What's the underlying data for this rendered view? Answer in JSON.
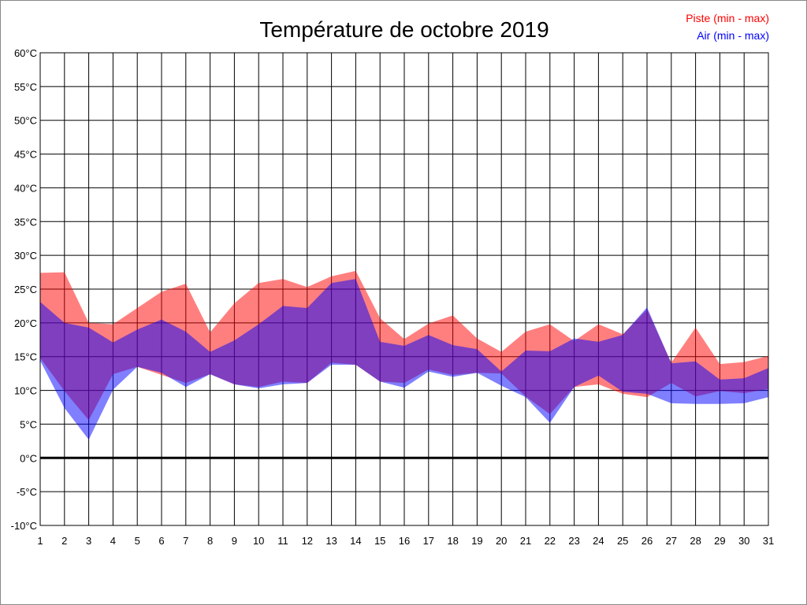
{
  "chart_data": {
    "type": "area",
    "title": "Température de octobre 2019",
    "xlabel": "",
    "ylabel": "",
    "x": [
      1,
      2,
      3,
      4,
      5,
      6,
      7,
      8,
      9,
      10,
      11,
      12,
      13,
      14,
      15,
      16,
      17,
      18,
      19,
      20,
      21,
      22,
      23,
      24,
      25,
      26,
      27,
      28,
      29,
      30,
      31
    ],
    "x_tick_labels": [
      "1",
      "2",
      "3",
      "4",
      "5",
      "6",
      "7",
      "8",
      "9",
      "10",
      "11",
      "12",
      "13",
      "14",
      "15",
      "16",
      "17",
      "18",
      "19",
      "20",
      "21",
      "22",
      "23",
      "24",
      "25",
      "26",
      "27",
      "28",
      "29",
      "30",
      "31"
    ],
    "ylim": [
      -10,
      60
    ],
    "y_ticks": [
      -10,
      -5,
      0,
      5,
      10,
      15,
      20,
      25,
      30,
      35,
      40,
      45,
      50,
      55,
      60
    ],
    "y_tick_labels": [
      "-10°C",
      "-5°C",
      "0°C",
      "5°C",
      "10°C",
      "15°C",
      "20°C",
      "25°C",
      "30°C",
      "35°C",
      "40°C",
      "45°C",
      "50°C",
      "55°C",
      "60°C"
    ],
    "grid": true,
    "legend_position": "top-right",
    "series": [
      {
        "name": "Piste (min - max)",
        "color": "#ff0000",
        "min": [
          14.8,
          9.9,
          5.6,
          12.4,
          13.5,
          12.3,
          11.1,
          12.4,
          10.9,
          10.5,
          11.3,
          11.1,
          14.1,
          13.8,
          11.3,
          11.1,
          13.1,
          12.3,
          12.6,
          12.5,
          9.1,
          6.5,
          10.5,
          10.9,
          9.5,
          9.0,
          11.1,
          9.1,
          9.9,
          9.6,
          10.2
        ],
        "max": [
          27.4,
          27.5,
          20.0,
          19.8,
          22.2,
          24.6,
          25.8,
          18.6,
          22.9,
          25.9,
          26.5,
          25.3,
          26.9,
          27.7,
          20.7,
          17.6,
          19.9,
          21.1,
          17.7,
          15.7,
          18.7,
          19.8,
          17.3,
          19.8,
          18.3,
          22.0,
          14.1,
          19.3,
          13.9,
          14.2,
          15.1
        ]
      },
      {
        "name": "Air (min - max)",
        "color": "#0000ff",
        "min": [
          14.4,
          7.4,
          2.7,
          10.1,
          13.5,
          12.6,
          10.5,
          12.4,
          10.9,
          10.3,
          10.9,
          11.1,
          13.8,
          13.8,
          11.3,
          10.4,
          12.8,
          12.0,
          12.6,
          10.7,
          9.0,
          5.2,
          10.5,
          12.2,
          9.8,
          9.5,
          8.1,
          8.0,
          8.0,
          8.1,
          9.0
        ],
        "max": [
          23.1,
          20.0,
          19.3,
          17.1,
          19.0,
          20.5,
          18.7,
          15.7,
          17.4,
          19.8,
          22.5,
          22.2,
          25.9,
          26.5,
          17.2,
          16.6,
          18.2,
          16.7,
          16.1,
          12.8,
          15.9,
          15.8,
          17.7,
          17.2,
          18.2,
          22.3,
          14.0,
          14.3,
          11.6,
          11.8,
          13.3
        ]
      }
    ]
  }
}
